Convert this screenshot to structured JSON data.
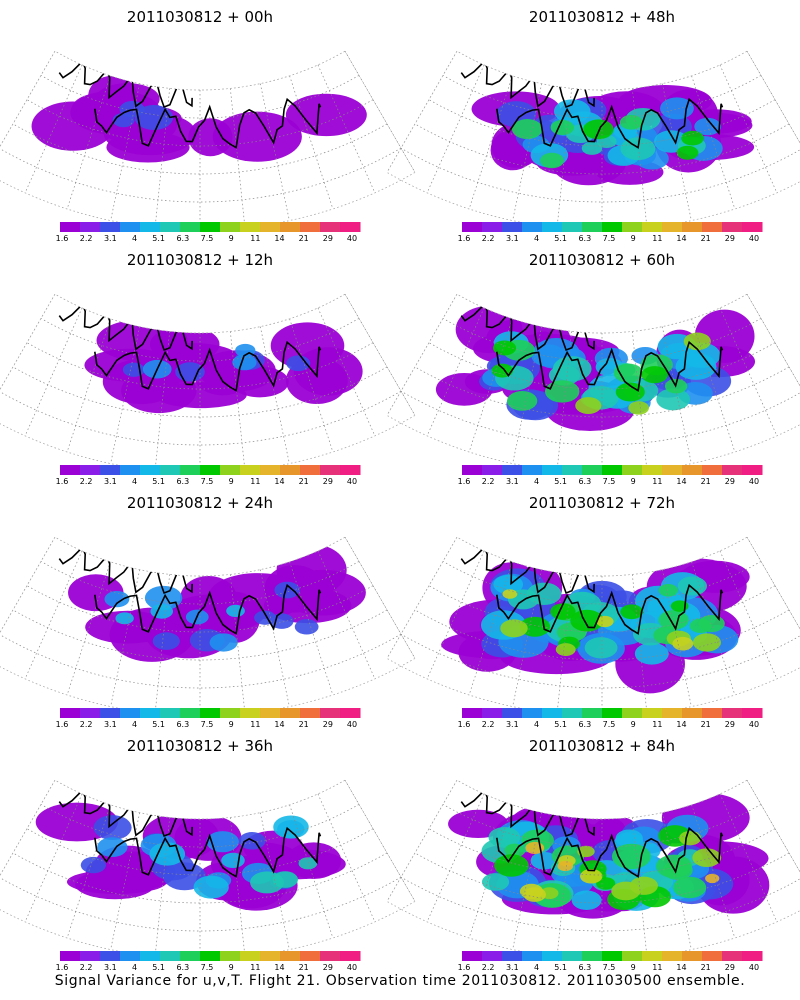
{
  "colorbar": {
    "ticks": [
      "1.6",
      "2.2",
      "3.1",
      "4",
      "5.1",
      "6.3",
      "7.5",
      "9",
      "11",
      "14",
      "21",
      "29",
      "40"
    ],
    "colors": [
      "#9b00d4",
      "#8a1ee8",
      "#3c4fe6",
      "#1e90f0",
      "#14b8e8",
      "#1ec8b4",
      "#1ecf5a",
      "#00c800",
      "#8ed21e",
      "#c8d21e",
      "#e6b42a",
      "#e6962a",
      "#f06e3c",
      "#e63278",
      "#f01e82"
    ]
  },
  "panels": [
    {
      "title": "2011030812 + 00h",
      "lead_hours": 0,
      "intensity": 0.15
    },
    {
      "title": "2011030812 + 48h",
      "lead_hours": 48,
      "intensity": 0.55
    },
    {
      "title": "2011030812 + 12h",
      "lead_hours": 12,
      "intensity": 0.25
    },
    {
      "title": "2011030812 + 60h",
      "lead_hours": 60,
      "intensity": 0.65
    },
    {
      "title": "2011030812 + 24h",
      "lead_hours": 24,
      "intensity": 0.32
    },
    {
      "title": "2011030812 + 72h",
      "lead_hours": 72,
      "intensity": 0.75
    },
    {
      "title": "2011030812 + 36h",
      "lead_hours": 36,
      "intensity": 0.42
    },
    {
      "title": "2011030812 + 84h",
      "lead_hours": 84,
      "intensity": 0.82
    }
  ],
  "footer": "Signal Variance for u,v,T. Flight 21. Observation time 2011030812. 2011030500 ensemble."
}
